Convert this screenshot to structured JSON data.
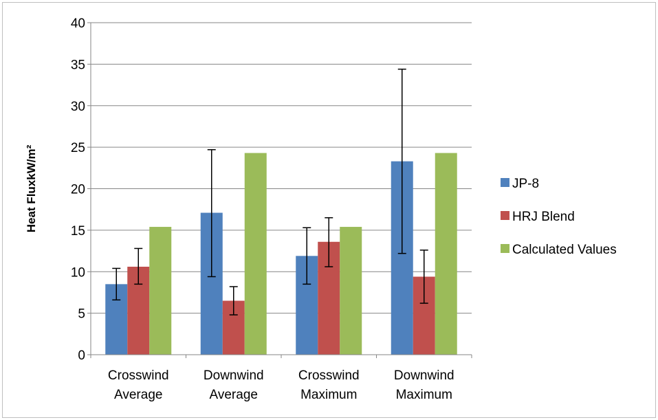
{
  "chart_data": {
    "type": "bar",
    "title": "",
    "xlabel": "",
    "ylabel": "Heat FluxkW/m²",
    "ylim": [
      0,
      40
    ],
    "yticks": [
      0,
      5,
      10,
      15,
      20,
      25,
      30,
      35,
      40
    ],
    "grid": true,
    "legend_position": "right",
    "categories": [
      [
        "Crosswind",
        "Average"
      ],
      [
        "Downwind",
        "Average"
      ],
      [
        "Crosswind",
        "Maximum"
      ],
      [
        "Downwind",
        "Maximum"
      ]
    ],
    "series": [
      {
        "name": "JP-8",
        "color": "#4f81bd",
        "values": [
          8.5,
          17.1,
          11.9,
          23.3
        ],
        "error": [
          [
            6.6,
            10.4
          ],
          [
            9.4,
            24.7
          ],
          [
            8.5,
            15.3
          ],
          [
            12.2,
            34.4
          ]
        ]
      },
      {
        "name": "HRJ Blend",
        "color": "#c0504d",
        "values": [
          10.6,
          6.5,
          13.6,
          9.4
        ],
        "error": [
          [
            8.5,
            12.8
          ],
          [
            4.8,
            8.2
          ],
          [
            10.6,
            16.5
          ],
          [
            6.2,
            12.6
          ]
        ]
      },
      {
        "name": "Calculated Values",
        "color": "#9bbb59",
        "values": [
          15.4,
          24.3,
          15.4,
          24.3
        ],
        "error": null
      }
    ]
  }
}
